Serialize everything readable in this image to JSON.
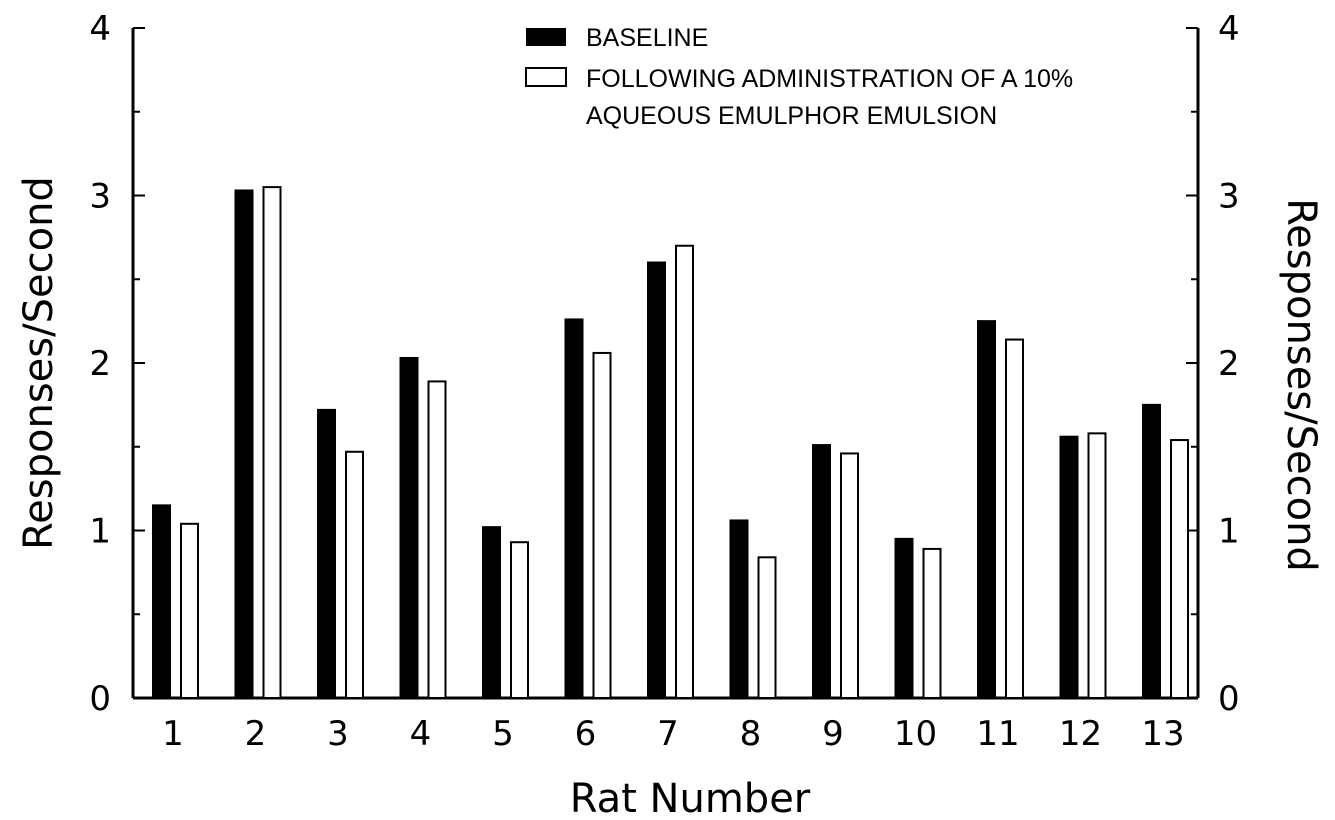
{
  "chart_data": {
    "type": "bar",
    "title": "",
    "xlabel": "Rat Number",
    "ylabel": "Responses/Second",
    "ylabel_right": "Responses/Second",
    "ylim": [
      0,
      4
    ],
    "y_ticks": [
      "0",
      "1",
      "2",
      "3",
      "4"
    ],
    "categories": [
      "1",
      "2",
      "3",
      "4",
      "5",
      "6",
      "7",
      "8",
      "9",
      "10",
      "11",
      "12",
      "13"
    ],
    "series": [
      {
        "name": "BASELINE",
        "fill": "#000000",
        "values": [
          1.15,
          3.03,
          1.72,
          2.03,
          1.02,
          2.26,
          2.6,
          1.06,
          1.51,
          0.95,
          2.25,
          1.56,
          1.75
        ]
      },
      {
        "name": "FOLLOWING ADMINISTRATION OF A 10% AQUEOUS EMULPHOR EMULSION",
        "fill": "#ffffff",
        "values": [
          1.04,
          3.05,
          1.47,
          1.89,
          0.93,
          2.06,
          2.7,
          0.84,
          1.46,
          0.89,
          2.14,
          1.58,
          1.54
        ]
      }
    ],
    "legend": {
      "position": "top-center",
      "line1": "BASELINE",
      "line2a": "FOLLOWING ADMINISTRATION OF A 10%",
      "line2b": "AQUEOUS EMULPHOR EMULSION"
    },
    "grid": false
  }
}
